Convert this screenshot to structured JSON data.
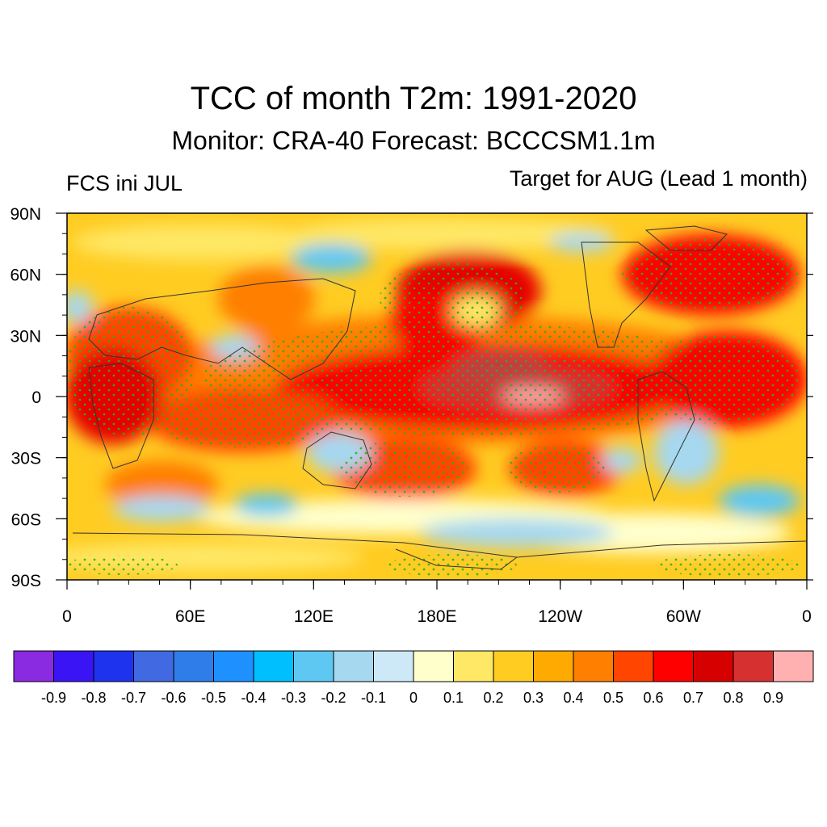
{
  "title": "TCC of month T2m: 1991-2020",
  "subtitle": "Monitor: CRA-40   Forecast: BCCCSM1.1m",
  "left_subtitle": "FCS ini JUL",
  "right_subtitle": "Target for AUG (Lead 1 month)",
  "map": {
    "projection": "cylindrical-equidistant",
    "lon_ticks": [
      "0",
      "60E",
      "120E",
      "180E",
      "120W",
      "60W",
      "0"
    ],
    "lat_ticks": [
      "90N",
      "60N",
      "30N",
      "0",
      "30S",
      "60S",
      "90S"
    ],
    "stippling_color": "#22b422",
    "coastline_color": "#333333"
  },
  "colorbar": {
    "colors": [
      "#8a2be2",
      "#3a14f5",
      "#1e33ee",
      "#4169e1",
      "#2f7de8",
      "#1e90ff",
      "#00bfff",
      "#5fc8f2",
      "#a6d8f0",
      "#cde9f7",
      "#ffffcc",
      "#ffe866",
      "#ffcc22",
      "#ffaa00",
      "#ff7f00",
      "#ff4500",
      "#ff0000",
      "#d60000",
      "#d63030",
      "#ffb0b0"
    ],
    "labels": [
      "-0.9",
      "-0.8",
      "-0.7",
      "-0.6",
      "-0.5",
      "-0.4",
      "-0.3",
      "-0.2",
      "-0.1",
      "0",
      "0.1",
      "0.2",
      "0.3",
      "0.4",
      "0.5",
      "0.6",
      "0.7",
      "0.8",
      "0.9"
    ]
  }
}
